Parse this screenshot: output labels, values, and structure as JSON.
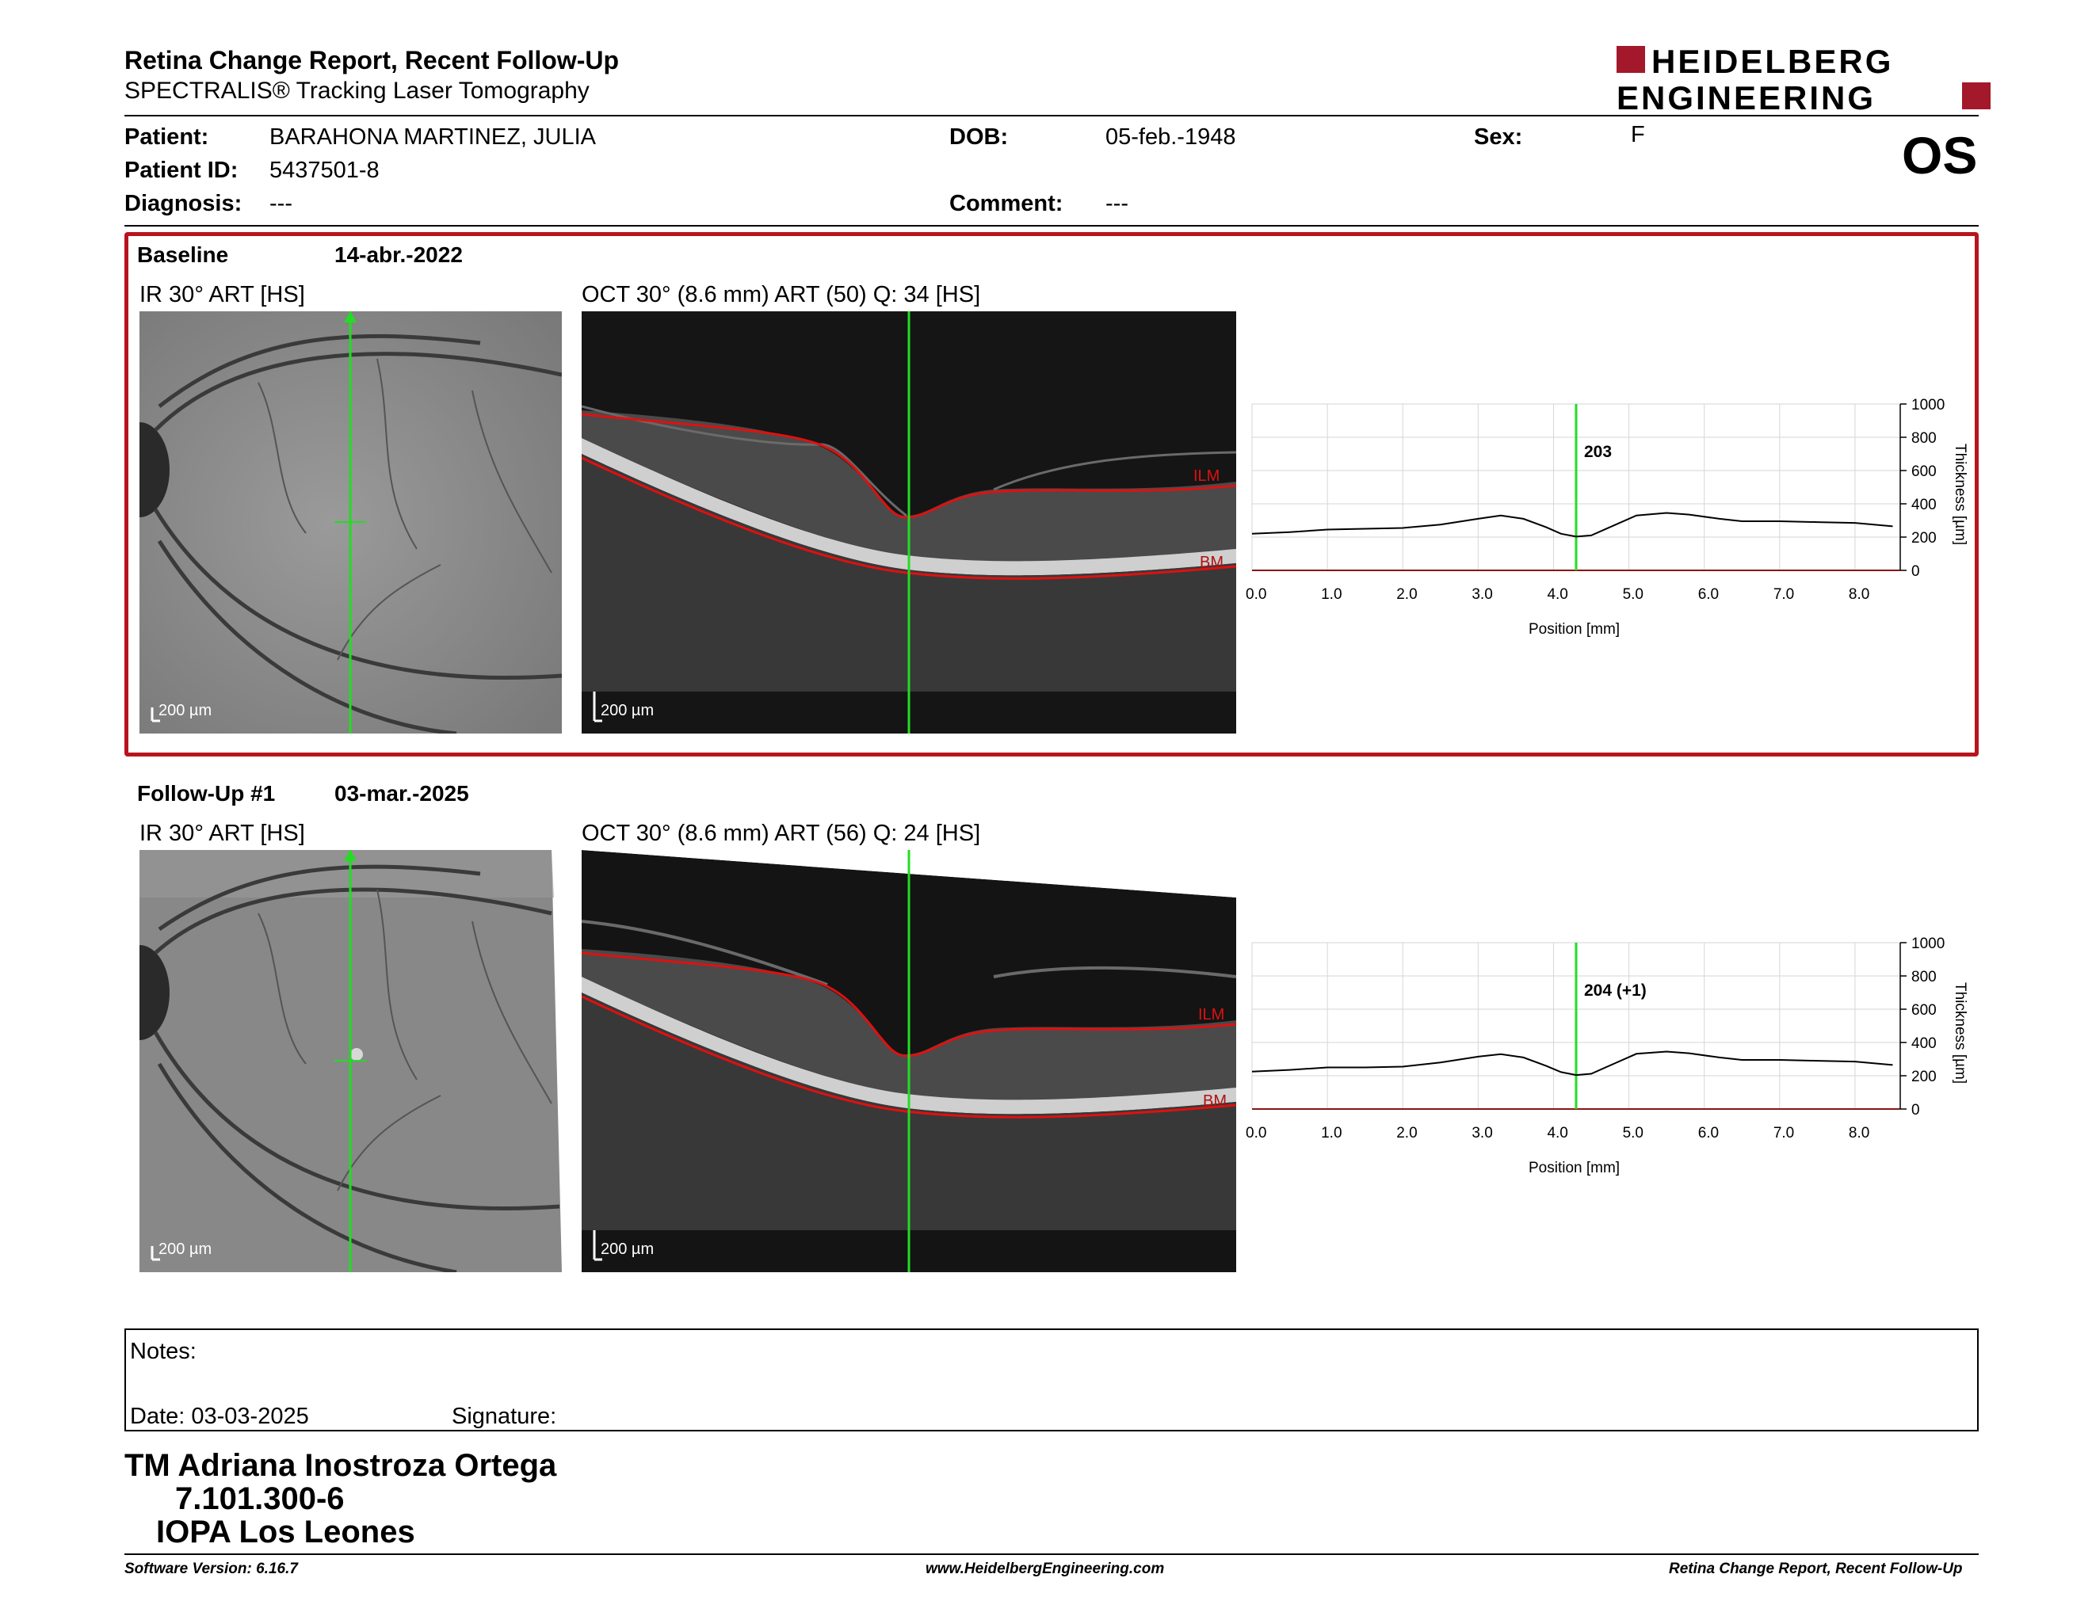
{
  "header": {
    "title": "Retina Change Report, Recent Follow-Up",
    "subtitle": "SPECTRALIS® Tracking Laser Tomography",
    "logo_line1": "HEIDELBERG",
    "logo_line2": "ENGINEERING",
    "brand_color": "#a3182a"
  },
  "patient": {
    "name_label": "Patient:",
    "name": "BARAHONA MARTINEZ, JULIA",
    "id_label": "Patient ID:",
    "id": "5437501-8",
    "diagnosis_label": "Diagnosis:",
    "diagnosis": "---",
    "dob_label": "DOB:",
    "dob": "05-feb.-1948",
    "comment_label": "Comment:",
    "comment": "---",
    "sex_label": "Sex:",
    "sex": "F",
    "eye": "OS"
  },
  "exams": [
    {
      "label": "Baseline",
      "date": "14-abr.-2022",
      "ir_caption": "IR 30° ART [HS]",
      "oct_caption": "OCT 30° (8.6 mm) ART (50) Q: 34 [HS]",
      "scale_bar": "200 µm",
      "ilm": "ILM",
      "bm": "BM",
      "thickness_label": "203"
    },
    {
      "label": "Follow-Up #1",
      "date": "03-mar.-2025",
      "ir_caption": "IR 30° ART [HS]",
      "oct_caption": "OCT 30° (8.6 mm) ART (56) Q: 24 [HS]",
      "scale_bar": "200 µm",
      "ilm": "ILM",
      "bm": "BM",
      "thickness_label": "204 (+1)"
    }
  ],
  "chart_data": [
    {
      "type": "line",
      "xlabel": "Position [mm]",
      "ylabel": "Thickness [µm]",
      "xlim": [
        0,
        8.6
      ],
      "ylim": [
        0,
        1000
      ],
      "x_ticks": [
        "0.0",
        "1.0",
        "2.0",
        "3.0",
        "4.0",
        "5.0",
        "6.0",
        "7.0",
        "8.0"
      ],
      "y_ticks": [
        "0",
        "200",
        "400",
        "600",
        "800",
        "1000"
      ],
      "cursor_x": 4.3,
      "x": [
        0.0,
        0.5,
        1.0,
        1.5,
        2.0,
        2.5,
        3.0,
        3.3,
        3.6,
        3.9,
        4.1,
        4.3,
        4.5,
        4.8,
        5.1,
        5.5,
        5.8,
        6.2,
        6.5,
        7.0,
        7.5,
        8.0,
        8.5
      ],
      "y": [
        220,
        230,
        245,
        250,
        255,
        275,
        310,
        330,
        310,
        260,
        220,
        203,
        210,
        270,
        330,
        345,
        335,
        310,
        295,
        295,
        290,
        285,
        265
      ]
    },
    {
      "type": "line",
      "xlabel": "Position [mm]",
      "ylabel": "Thickness [µm]",
      "xlim": [
        0,
        8.6
      ],
      "ylim": [
        0,
        1000
      ],
      "x_ticks": [
        "0.0",
        "1.0",
        "2.0",
        "3.0",
        "4.0",
        "5.0",
        "6.0",
        "7.0",
        "8.0"
      ],
      "y_ticks": [
        "0",
        "200",
        "400",
        "600",
        "800",
        "1000"
      ],
      "cursor_x": 4.3,
      "x": [
        0.0,
        0.5,
        1.0,
        1.5,
        2.0,
        2.5,
        3.0,
        3.3,
        3.6,
        3.9,
        4.1,
        4.3,
        4.5,
        4.8,
        5.1,
        5.5,
        5.8,
        6.2,
        6.5,
        7.0,
        7.5,
        8.0,
        8.5
      ],
      "y": [
        225,
        235,
        250,
        250,
        255,
        280,
        315,
        330,
        310,
        260,
        222,
        204,
        212,
        272,
        332,
        345,
        335,
        310,
        295,
        295,
        290,
        285,
        265
      ]
    }
  ],
  "notes": {
    "notes_label": "Notes:",
    "date_label": "Date: 03-03-2025",
    "signature_label": "Signature:"
  },
  "signer": {
    "name": "TM Adriana Inostroza Ortega",
    "rut": "7.101.300-6",
    "place": "IOPA Los Leones"
  },
  "footer": {
    "software": "Software Version: 6.16.7",
    "website": "www.HeidelbergEngineering.com",
    "report": "Retina Change Report, Recent Follow-Up"
  }
}
